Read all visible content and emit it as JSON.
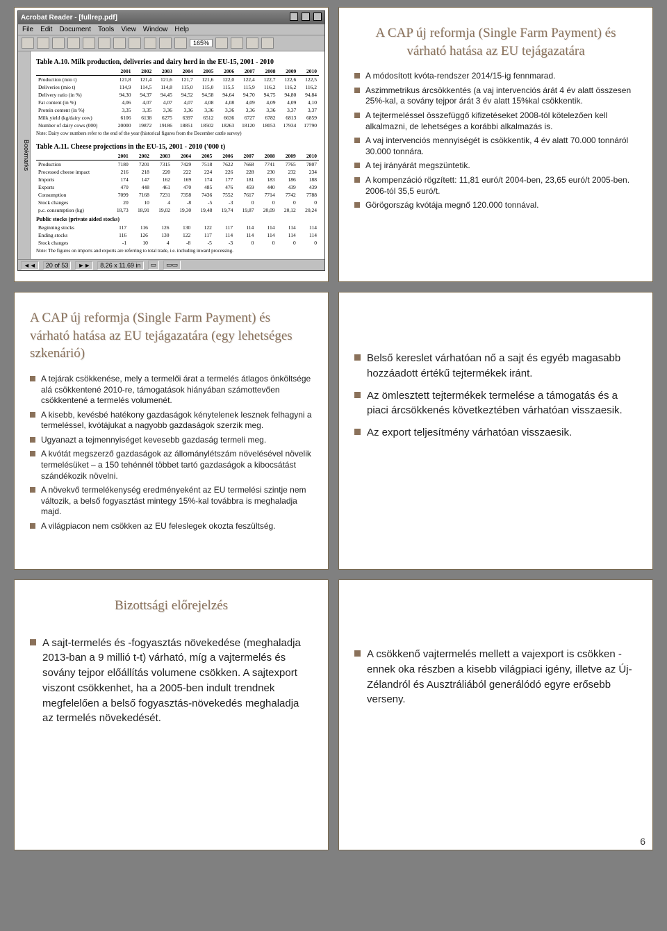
{
  "page_number": "6",
  "colors": {
    "accent": "#8a715a",
    "page_bg": "#808080",
    "slide_bg": "#ffffff",
    "slide_border": "#7a6a50"
  },
  "app": {
    "window_title": "Acrobat Reader - [fullrep.pdf]",
    "menu": [
      "File",
      "Edit",
      "Document",
      "Tools",
      "View",
      "Window",
      "Help"
    ],
    "zoom": "165%",
    "sidebar_label": "Bookmarks",
    "statusbar": {
      "page": "20 of 53",
      "size": "8.26 x 11.69 in",
      "other": ""
    }
  },
  "tableA10": {
    "caption": "Table A.10.  Milk production, deliveries and dairy herd in the EU-15, 2001 - 2010",
    "years": [
      "2001",
      "2002",
      "2003",
      "2004",
      "2005",
      "2006",
      "2007",
      "2008",
      "2009",
      "2010"
    ],
    "rows": [
      {
        "label": "Production (mio t)",
        "v": [
          "121,8",
          "121,4",
          "121,6",
          "121,7",
          "121,6",
          "122,0",
          "122,4",
          "122,7",
          "122,6",
          "122,5"
        ]
      },
      {
        "label": "Deliveries (mio t)",
        "v": [
          "114,9",
          "114,5",
          "114,8",
          "115,0",
          "115,0",
          "115,5",
          "115,9",
          "116,2",
          "116,2",
          "116,2"
        ]
      },
      {
        "label": "Delivery ratio (in %)",
        "v": [
          "94,30",
          "94,37",
          "94,45",
          "94,52",
          "94,58",
          "94,64",
          "94,70",
          "94,75",
          "94,80",
          "94,84"
        ]
      },
      {
        "label": "Fat content (in %)",
        "v": [
          "4,06",
          "4,07",
          "4,07",
          "4,07",
          "4,08",
          "4,08",
          "4,09",
          "4,09",
          "4,09",
          "4,10"
        ]
      },
      {
        "label": "Protein content (in %)",
        "v": [
          "3,35",
          "3,35",
          "3,36",
          "3,36",
          "3,36",
          "3,36",
          "3,36",
          "3,36",
          "3,37",
          "3,37"
        ]
      },
      {
        "label": "Milk yield (kg/dairy cow)",
        "v": [
          "6106",
          "6138",
          "6275",
          "6397",
          "6512",
          "6636",
          "6727",
          "6782",
          "6813",
          "6859"
        ]
      },
      {
        "label": "Number of dairy cows (000)",
        "v": [
          "20000",
          "19872",
          "19186",
          "18851",
          "18502",
          "18263",
          "18120",
          "18053",
          "17934",
          "17790"
        ]
      }
    ],
    "note": "Note: Dairy cow numbers refer to the end of the year (historical figures from the December cattle survey)"
  },
  "tableA11": {
    "caption": "Table A.11.  Cheese projections in the EU-15, 2001 - 2010  ('000 t)",
    "years": [
      "2001",
      "2002",
      "2003",
      "2004",
      "2005",
      "2006",
      "2007",
      "2008",
      "2009",
      "2010"
    ],
    "rows": [
      {
        "label": "Production",
        "v": [
          "7180",
          "7201",
          "7315",
          "7429",
          "7518",
          "7622",
          "7668",
          "7741",
          "7765",
          "7807"
        ]
      },
      {
        "label": "Processed cheese impact",
        "v": [
          "216",
          "218",
          "220",
          "222",
          "224",
          "226",
          "228",
          "230",
          "232",
          "234"
        ]
      },
      {
        "label": "Imports",
        "v": [
          "174",
          "147",
          "162",
          "169",
          "174",
          "177",
          "181",
          "183",
          "186",
          "188"
        ]
      },
      {
        "label": "Exports",
        "v": [
          "470",
          "448",
          "461",
          "470",
          "485",
          "476",
          "459",
          "440",
          "439",
          "439"
        ]
      },
      {
        "label": "Consumption",
        "v": [
          "7099",
          "7168",
          "7231",
          "7358",
          "7436",
          "7552",
          "7617",
          "7714",
          "7742",
          "7788"
        ]
      },
      {
        "label": "Stock changes",
        "v": [
          "20",
          "10",
          "4",
          "-8",
          "-5",
          "-3",
          "0",
          "0",
          "0",
          "0"
        ]
      },
      {
        "label": "p.c. consumption (kg)",
        "v": [
          "18,73",
          "18,91",
          "19,02",
          "19,30",
          "19,48",
          "19,74",
          "19,87",
          "20,09",
          "20,12",
          "20,24"
        ]
      }
    ],
    "sub_caption": "Public stocks (private aided stocks)",
    "rows2": [
      {
        "label": "Beginning stocks",
        "v": [
          "117",
          "116",
          "126",
          "130",
          "122",
          "117",
          "114",
          "114",
          "114",
          "114"
        ]
      },
      {
        "label": "Ending stocks",
        "v": [
          "116",
          "126",
          "130",
          "122",
          "117",
          "114",
          "114",
          "114",
          "114",
          "114"
        ]
      },
      {
        "label": "Stock changes",
        "v": [
          "-1",
          "10",
          "4",
          "-8",
          "-5",
          "-3",
          "0",
          "0",
          "0",
          "0"
        ]
      }
    ],
    "note": "Note: The figures on imports and exports are referring to total trade, i.e. including inward processing."
  },
  "slide1": {
    "title": "A CAP új reformja (Single Farm Payment) és várható hatása az EU tejágazatára",
    "bullets": [
      "A módosított kvóta-rendszer 2014/15-ig fennmarad.",
      "Aszimmetrikus árcsökkentés (a vaj intervenciós árát 4 év alatt összesen 25%-kal, a sovány tejpor árát 3 év alatt 15%kal csökkentik.",
      "A tejtermeléssel összefüggő kifizetéseket 2008-tól kötelezően kell alkalmazni, de lehetséges a korábbi alkalmazás is.",
      "A vaj intervenciós mennyiségét is csökkentik, 4 év alatt 70.000 tonnáról 30.000 tonnára.",
      "A tej irányárát megszüntetik.",
      "A kompenzáció rögzített: 11,81 euró/t 2004-ben, 23,65 euró/t 2005-ben. 2006-tól 35,5 euró/t.",
      "Görögország kvótája megnő 120.000 tonnával."
    ]
  },
  "slide2": {
    "title": "A CAP új reformja (Single Farm Payment) és várható hatása az EU tejágazatára (egy lehetséges szkenárió)",
    "left": [
      "A tejárak csökkenése, mely a termelői árat a termelés átlagos önköltsége alá csökkentené 2010-re, támogatások hiányában számottevően csökkentené a termelés volumenét.",
      "A kisebb, kevésbé hatékony gazdaságok  kénytelenek lesznek felhagyni a termeléssel, kvótájukat a nagyobb gazdaságok szerzik meg.",
      "Ugyanazt a tejmennyiséget kevesebb gazdaság termeli meg.",
      "A kvótát megszerző gazdaságok az állománylétszám növelésével növelik termelésüket – a 150 tehénnél többet tartó gazdaságok a kibocsátást szándékozik növelni.",
      " A növekvő termelékenység eredményeként az EU termelési szintje nem változik, a belső fogyasztást mintegy 15%-kal továbbra is meghaladja majd.",
      "A világpiacon nem csökken az EU feleslegek okozta feszültség."
    ],
    "right": [
      "Belső kereslet várhatóan nő a sajt és egyéb magasabb hozzáadott értékű tejtermékek iránt.",
      "Az ömlesztett tejtermékek termelése a támogatás és a piaci árcsökkenés következtében várhatóan visszaesik.",
      "Az export teljesítmény várhatóan visszaesik."
    ]
  },
  "slide3": {
    "title": "Bizottsági előrejelzés",
    "left": [
      "A sajt-termelés és -fogyasztás növekedése (meghaladja 2013-ban a 9 millió t-t) várható, míg a vajtermelés és sovány tejpor előállítás volumene csökken. A sajtexport viszont csökkenhet, ha a 2005-ben indult trendnek megfelelően a belső fogyasztás-növekedés meghaladja az termelés növekedését."
    ],
    "right": [
      "A csökkenő vajtermelés mellett a vajexport is csökken - ennek oka részben a kisebb világpiaci igény, illetve az Új-Zélandról és Ausztráliából generálódó egyre erősebb verseny."
    ]
  }
}
